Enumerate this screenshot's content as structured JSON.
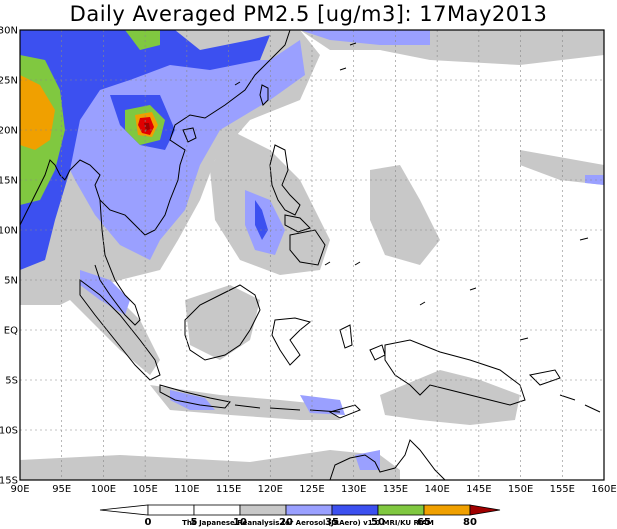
{
  "title": "Daily Averaged PM2.5 [ug/m3]: 17May2013",
  "credit": "The Japanese Reanalysis for Aerosol (JRAero) v1.0 MRI/KU RIAM",
  "axes": {
    "lon_labels": [
      "90E",
      "95E",
      "100E",
      "105E",
      "110E",
      "115E",
      "120E",
      "125E",
      "130E",
      "135E",
      "140E",
      "145E",
      "150E",
      "155E",
      "160E"
    ],
    "lat_labels": [
      "30N",
      "25N",
      "20N",
      "15N",
      "10N",
      "5N",
      "EQ",
      "5S",
      "10S",
      "15S"
    ],
    "lon_range": [
      90,
      160
    ],
    "lat_range": [
      -15,
      30
    ]
  },
  "legend": {
    "ticks": [
      "0",
      "5",
      "10",
      "20",
      "35",
      "50",
      "65",
      "80"
    ],
    "colors": {
      "below_0": "#ffffff",
      "0_5": "#ffffff",
      "5_10": "#ffffff",
      "10_20": "#c8c8c8",
      "20_35": "#9aa0ff",
      "35_50": "#3c50f0",
      "50_65": "#80c840",
      "65_80": "#f0a000",
      "80_plus": "#e00000",
      "above_80": "#a00000"
    }
  }
}
